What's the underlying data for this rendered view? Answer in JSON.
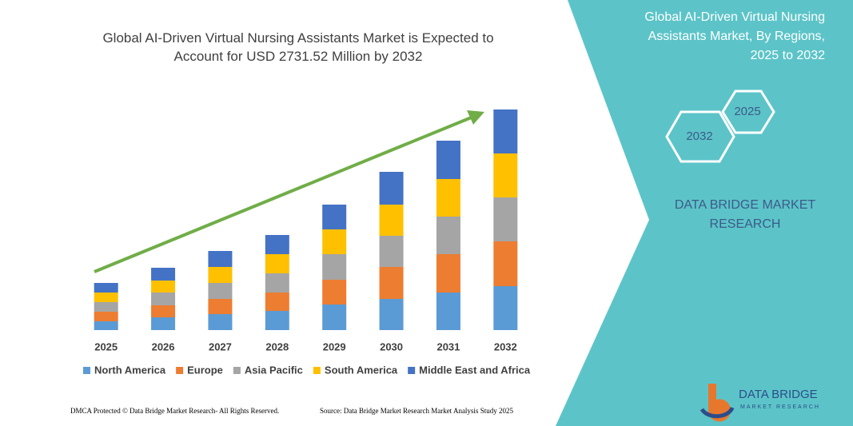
{
  "chart_data": {
    "type": "stacked-bar",
    "title": "Global AI-Driven Virtual Nursing Assistants Market is Expected to Account for USD 2731.52 Million by 2032",
    "categories": [
      "2025",
      "2026",
      "2027",
      "2028",
      "2029",
      "2030",
      "2031",
      "2032"
    ],
    "series": [
      {
        "name": "North America",
        "color": "#5b9bd5",
        "values": [
          11,
          16,
          20,
          24,
          32,
          39,
          47,
          55
        ]
      },
      {
        "name": "Europe",
        "color": "#ed7d31",
        "values": [
          12,
          15,
          19,
          23,
          31,
          40,
          48,
          56
        ]
      },
      {
        "name": "Asia Pacific",
        "color": "#a5a5a5",
        "values": [
          12,
          16,
          20,
          24,
          32,
          39,
          47,
          55
        ]
      },
      {
        "name": "South America",
        "color": "#ffc000",
        "values": [
          12,
          15,
          20,
          24,
          31,
          39,
          47,
          55
        ]
      },
      {
        "name": "Middle East and Africa",
        "color": "#4472c4",
        "values": [
          12,
          16,
          20,
          24,
          31,
          41,
          48,
          55
        ]
      }
    ],
    "ylim": [
      0,
      300
    ],
    "legend": "bottom"
  },
  "panel": {
    "title": "Global AI-Driven Virtual Nursing Assistants Market, By Regions, 2025 to 2032",
    "hex_start": "2025",
    "hex_end": "2032",
    "brand": "DATA BRIDGE MARKET RESEARCH",
    "logo_name": "DATA BRIDGE",
    "logo_sub": "MARKET RESEARCH"
  },
  "footer": {
    "left": "DMCA Protected © Data Bridge Market Research-  All Rights Reserved.",
    "right": "Source: Data Bridge Market Research  Market Analysis Study 2025"
  }
}
